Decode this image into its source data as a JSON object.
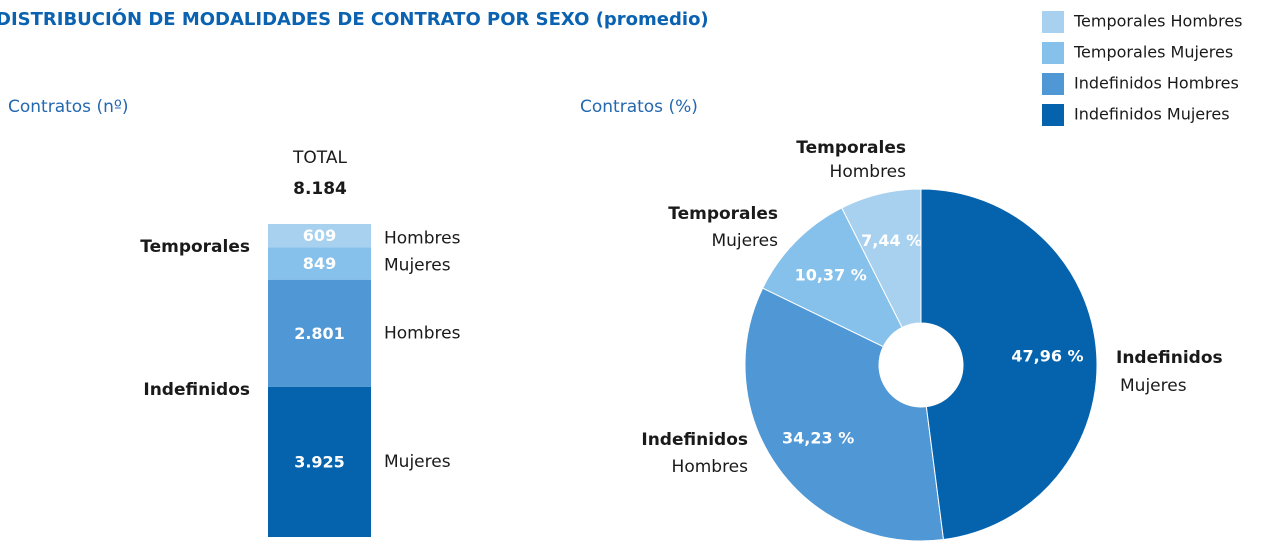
{
  "title": "DISTRIBUCIÓN DE MODALIDADES DE CONTRATO POR SEXO (promedio)",
  "chart_data": [
    {
      "type": "stacked_bar",
      "subtitle": "Contratos (nº)",
      "total_title": "TOTAL",
      "total": 8184,
      "total_label": "8.184",
      "groups": [
        "Temporales",
        "Indefinidos"
      ],
      "series": [
        {
          "name": "Temporales Hombres",
          "color": "#a8d1f0",
          "values": [
            609
          ],
          "value_labels": [
            "609"
          ],
          "sublabel": "Hombres"
        },
        {
          "name": "Temporales Mujeres",
          "color": "#85c1ea",
          "values": [
            849
          ],
          "value_labels": [
            "849"
          ],
          "sublabel": "Mujeres"
        },
        {
          "name": "Indefinidos Hombres",
          "color": "#4f97d5",
          "values": [
            2801
          ],
          "value_labels": [
            "2.801"
          ],
          "sublabel": "Hombres"
        },
        {
          "name": "Indefinidos Mujeres",
          "color": "#0563ae",
          "values": [
            3925
          ],
          "value_labels": [
            "3.925"
          ],
          "sublabel": "Mujeres"
        }
      ]
    },
    {
      "type": "donut",
      "subtitle": "Contratos (%)",
      "labels": [
        [
          "Temporales",
          "Hombres"
        ],
        [
          "Temporales",
          "Mujeres"
        ],
        [
          "Indefinidos",
          "Hombres"
        ],
        [
          "Indefinidos",
          "Mujeres"
        ]
      ],
      "colors": [
        "#a8d1f0",
        "#85c1ea",
        "#4f97d5",
        "#0563ae"
      ],
      "values": [
        7.44,
        10.37,
        34.23,
        47.96
      ],
      "value_labels": [
        "7,44 %",
        "10,37 %",
        "34,23 %",
        "47,96 %"
      ]
    }
  ]
}
